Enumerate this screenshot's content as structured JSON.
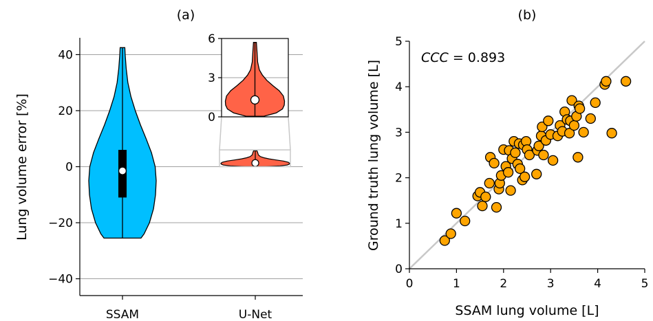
{
  "chart_data": [
    {
      "panel": "(a)",
      "title": "(a)",
      "type": "violin",
      "ylabel": "Lung volume error [%]",
      "ylim": [
        -46,
        46
      ],
      "yticks": [
        -40,
        -20,
        0,
        20,
        40
      ],
      "ytick_labels": [
        "−40",
        "−20",
        "0",
        "20",
        "40"
      ],
      "categories": [
        "SSAM",
        "U-Net"
      ],
      "grid": "horizontal",
      "series": [
        {
          "category": "SSAM",
          "color": "#00bfff",
          "min": -25.5,
          "max": 42.5,
          "q1": -11,
          "q3": 6,
          "median": -1.5,
          "profile": [
            [
              -25.5,
              0.55
            ],
            [
              -24,
              0.64
            ],
            [
              -20,
              0.8
            ],
            [
              -15,
              0.92
            ],
            [
              -10,
              0.98
            ],
            [
              -5,
              1.0
            ],
            [
              0,
              0.97
            ],
            [
              5,
              0.86
            ],
            [
              10,
              0.7
            ],
            [
              15,
              0.53
            ],
            [
              20,
              0.38
            ],
            [
              25,
              0.25
            ],
            [
              30,
              0.16
            ],
            [
              35,
              0.11
            ],
            [
              40,
              0.08
            ],
            [
              42.5,
              0.07
            ]
          ]
        },
        {
          "category": "U-Net",
          "color": "#ff6347",
          "min": 0.05,
          "max": 5.7,
          "median": 1.3,
          "profile": [
            [
              0.05,
              0.3
            ],
            [
              0.3,
              0.72
            ],
            [
              0.6,
              0.93
            ],
            [
              0.9,
              0.99
            ],
            [
              1.2,
              1.0
            ],
            [
              1.6,
              0.96
            ],
            [
              2.0,
              0.82
            ],
            [
              2.4,
              0.6
            ],
            [
              2.8,
              0.4
            ],
            [
              3.2,
              0.25
            ],
            [
              3.6,
              0.15
            ],
            [
              4.2,
              0.09
            ],
            [
              5.0,
              0.07
            ],
            [
              5.7,
              0.05
            ]
          ]
        }
      ],
      "inset": {
        "ylim": [
          0,
          6
        ],
        "yticks": [
          0,
          3,
          6
        ],
        "ytick_labels": [
          "0",
          "3",
          "6"
        ]
      }
    },
    {
      "panel": "(b)",
      "title": "(b)",
      "type": "scatter",
      "xlabel": "SSAM lung volume [L]",
      "ylabel": "Ground truth lung volume [L]",
      "xlim": [
        0,
        5
      ],
      "ylim": [
        0,
        5
      ],
      "xticks": [
        0,
        1,
        2,
        3,
        4,
        5
      ],
      "yticks": [
        0,
        1,
        2,
        3,
        4,
        5
      ],
      "annotation_italic": "CCC",
      "annotation_rest": " = 0.893",
      "identity_line": true,
      "point_color": "#ffa500",
      "points": [
        [
          0.75,
          0.62
        ],
        [
          0.88,
          0.77
        ],
        [
          1.0,
          1.22
        ],
        [
          1.18,
          1.05
        ],
        [
          1.45,
          1.6
        ],
        [
          1.5,
          1.68
        ],
        [
          1.55,
          1.38
        ],
        [
          1.62,
          1.58
        ],
        [
          1.7,
          1.88
        ],
        [
          1.72,
          2.45
        ],
        [
          1.8,
          2.32
        ],
        [
          1.85,
          1.35
        ],
        [
          1.9,
          1.75
        ],
        [
          1.92,
          1.88
        ],
        [
          1.95,
          2.05
        ],
        [
          2.0,
          2.62
        ],
        [
          2.05,
          2.25
        ],
        [
          2.1,
          2.12
        ],
        [
          2.12,
          2.6
        ],
        [
          2.15,
          1.72
        ],
        [
          2.18,
          2.42
        ],
        [
          2.22,
          2.8
        ],
        [
          2.25,
          2.55
        ],
        [
          2.3,
          2.3
        ],
        [
          2.33,
          2.75
        ],
        [
          2.35,
          2.2
        ],
        [
          2.4,
          1.95
        ],
        [
          2.42,
          2.72
        ],
        [
          2.45,
          2.02
        ],
        [
          2.48,
          2.8
        ],
        [
          2.5,
          2.62
        ],
        [
          2.55,
          2.5
        ],
        [
          2.7,
          2.08
        ],
        [
          2.72,
          2.6
        ],
        [
          2.75,
          2.7
        ],
        [
          2.8,
          2.92
        ],
        [
          2.82,
          3.12
        ],
        [
          2.85,
          2.5
        ],
        [
          2.9,
          2.82
        ],
        [
          2.95,
          3.25
        ],
        [
          3.0,
          2.95
        ],
        [
          3.05,
          2.38
        ],
        [
          3.15,
          2.92
        ],
        [
          3.2,
          3.15
        ],
        [
          3.25,
          3.02
        ],
        [
          3.3,
          3.45
        ],
        [
          3.35,
          3.28
        ],
        [
          3.4,
          2.98
        ],
        [
          3.42,
          3.25
        ],
        [
          3.45,
          3.7
        ],
        [
          3.5,
          3.15
        ],
        [
          3.55,
          3.35
        ],
        [
          3.58,
          2.45
        ],
        [
          3.6,
          3.58
        ],
        [
          3.62,
          3.52
        ],
        [
          3.7,
          3.0
        ],
        [
          3.85,
          3.3
        ],
        [
          3.95,
          3.65
        ],
        [
          4.15,
          4.05
        ],
        [
          4.18,
          4.12
        ],
        [
          4.3,
          2.98
        ],
        [
          4.6,
          4.12
        ]
      ]
    }
  ]
}
